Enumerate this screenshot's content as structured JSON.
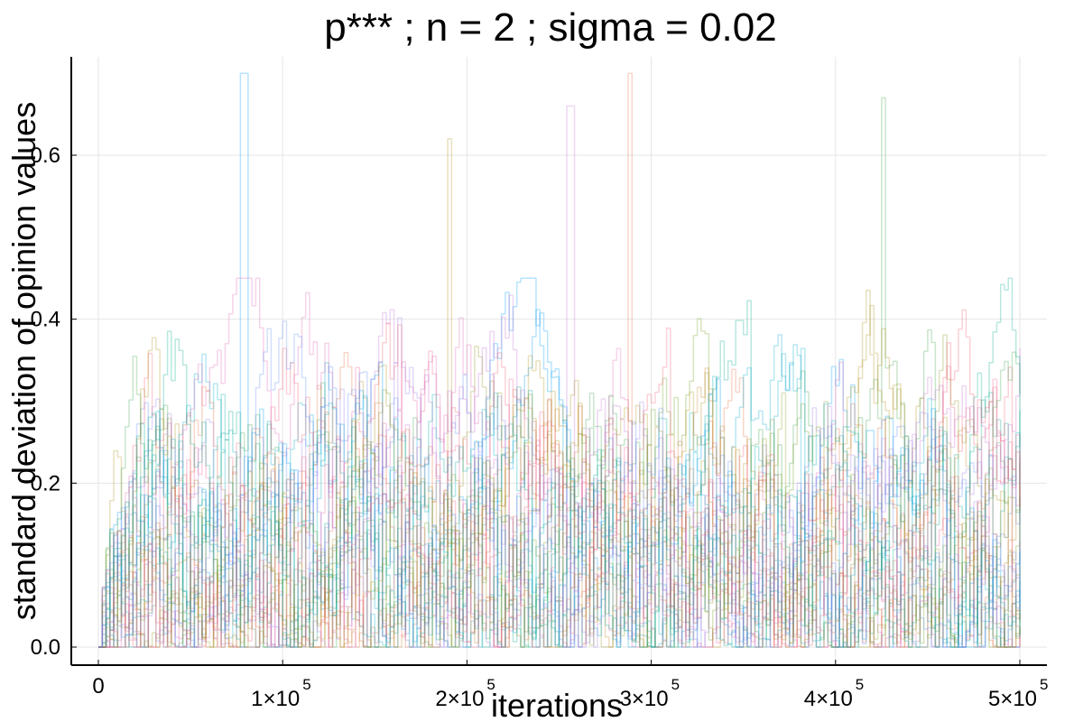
{
  "chart_data": {
    "type": "line",
    "title": "p***  ; n = 2 ; sigma = 0.02",
    "xlabel": "iterations",
    "ylabel": "standard deviation of opinion values",
    "xlim": [
      0,
      500000
    ],
    "ylim": [
      0.0,
      0.72
    ],
    "grid": true,
    "legend": "none",
    "x_ticks": [
      {
        "value": 0,
        "label": "0",
        "exponent": ""
      },
      {
        "value": 100000,
        "label": "1×10",
        "exponent": "5"
      },
      {
        "value": 200000,
        "label": "2×10",
        "exponent": "5"
      },
      {
        "value": 300000,
        "label": "3×10",
        "exponent": "5"
      },
      {
        "value": 400000,
        "label": "4×10",
        "exponent": "5"
      },
      {
        "value": 500000,
        "label": "5×10",
        "exponent": "5"
      }
    ],
    "y_ticks": [
      {
        "value": 0.0,
        "label": "0.0"
      },
      {
        "value": 0.2,
        "label": "0.2"
      },
      {
        "value": 0.4,
        "label": "0.4"
      },
      {
        "value": 0.6,
        "label": "0.6"
      }
    ],
    "series_count": 30,
    "series_colors": [
      "#009af9",
      "#e26f46",
      "#3da44d",
      "#c271d2",
      "#ac8e18",
      "#00a9ad",
      "#ed5e93",
      "#c68225",
      "#00a98d",
      "#8e971d",
      "#00a9cd",
      "#9b7fe9",
      "#618df6",
      "#f05f73",
      "#dd64b5",
      "#6b9d1e"
    ],
    "series_summary": {
      "typical_range": [
        0.0,
        0.45
      ],
      "peaks": [
        {
          "x": 78000,
          "y": 0.7
        },
        {
          "x": 287000,
          "y": 0.7
        },
        {
          "x": 425000,
          "y": 0.67
        },
        {
          "x": 255000,
          "y": 0.66
        },
        {
          "x": 190000,
          "y": 0.62
        }
      ]
    }
  }
}
